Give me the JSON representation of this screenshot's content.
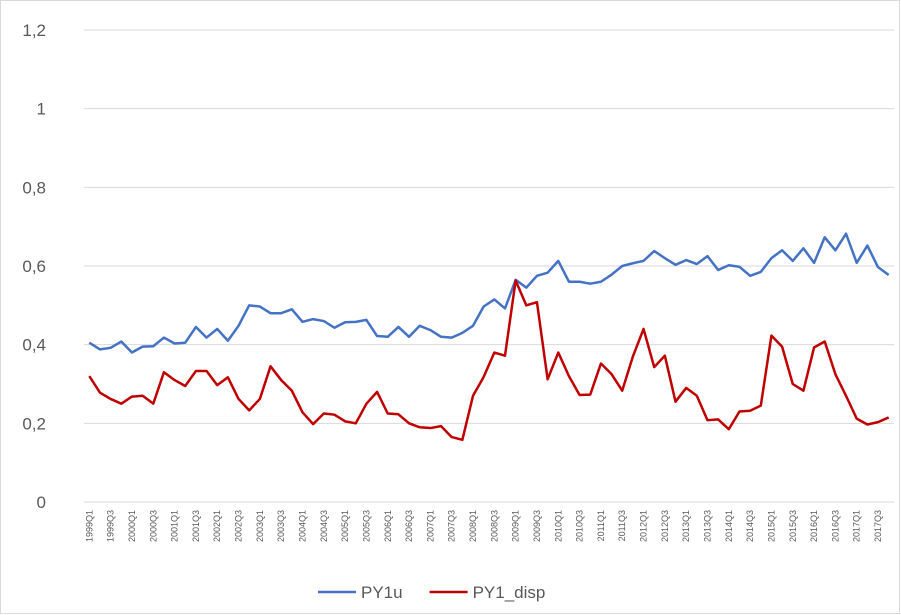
{
  "chart_data": {
    "type": "line",
    "categories": [
      "1999Q1",
      null,
      "1999Q3",
      null,
      "2000Q1",
      null,
      "2000Q3",
      null,
      "2001Q1",
      null,
      "2001Q3",
      null,
      "2002Q1",
      null,
      "2002Q3",
      null,
      "2003Q1",
      null,
      "2003Q3",
      null,
      "2004Q1",
      null,
      "2004Q3",
      null,
      "2005Q1",
      null,
      "2005Q3",
      null,
      "2006Q1",
      null,
      "2006Q3",
      null,
      "2007Q1",
      null,
      "2007Q3",
      null,
      "2008Q1",
      null,
      "2008Q3",
      null,
      "2009Q1",
      null,
      "2009Q3",
      null,
      "2010Q1",
      null,
      "2010Q3",
      null,
      "2011Q1",
      null,
      "2011Q3",
      null,
      "2012Q1",
      null,
      "2012Q3",
      null,
      "2013Q1",
      null,
      "2013Q3",
      null,
      "2014Q1",
      null,
      "2014Q3",
      null,
      "2015Q1",
      null,
      "2015Q3",
      null,
      "2016Q1",
      null,
      "2016Q3",
      null,
      "2017Q1",
      null,
      "2017Q3",
      null
    ],
    "series": [
      {
        "name": "PY1u",
        "color": "#4472c4",
        "values": [
          0.405,
          0.388,
          0.392,
          0.408,
          0.38,
          0.395,
          0.396,
          0.418,
          0.403,
          0.405,
          0.445,
          0.418,
          0.44,
          0.41,
          0.448,
          0.5,
          0.497,
          0.48,
          0.48,
          0.49,
          0.458,
          0.465,
          0.46,
          0.443,
          0.457,
          0.458,
          0.463,
          0.422,
          0.42,
          0.445,
          0.42,
          0.448,
          0.437,
          0.42,
          0.418,
          0.43,
          0.448,
          0.497,
          0.515,
          0.492,
          0.565,
          0.545,
          0.575,
          0.583,
          0.613,
          0.56,
          0.56,
          0.555,
          0.56,
          0.578,
          0.6,
          0.607,
          0.613,
          0.638,
          0.62,
          0.603,
          0.615,
          0.605,
          0.625,
          0.59,
          0.602,
          0.598,
          0.575,
          0.585,
          0.62,
          0.64,
          0.613,
          0.645,
          0.608,
          0.673,
          0.64,
          0.682,
          0.608,
          0.652,
          0.597,
          0.577
        ]
      },
      {
        "name": "PY1_disp",
        "color": "#c00000",
        "values": [
          0.32,
          0.278,
          0.262,
          0.25,
          0.268,
          0.27,
          0.25,
          0.33,
          0.31,
          0.295,
          0.333,
          0.333,
          0.297,
          0.317,
          0.262,
          0.233,
          0.262,
          0.345,
          0.31,
          0.283,
          0.228,
          0.198,
          0.225,
          0.222,
          0.205,
          0.2,
          0.25,
          0.28,
          0.225,
          0.223,
          0.2,
          0.19,
          0.188,
          0.193,
          0.165,
          0.158,
          0.27,
          0.318,
          0.38,
          0.372,
          0.563,
          0.5,
          0.508,
          0.312,
          0.38,
          0.32,
          0.272,
          0.273,
          0.352,
          0.325,
          0.283,
          0.37,
          0.44,
          0.343,
          0.372,
          0.255,
          0.29,
          0.27,
          0.208,
          0.21,
          0.185,
          0.23,
          0.232,
          0.245,
          0.423,
          0.395,
          0.3,
          0.283,
          0.393,
          0.408,
          0.325,
          0.27,
          0.212,
          0.197,
          0.203,
          0.215
        ]
      }
    ],
    "ylim": [
      0,
      1.2
    ],
    "yticks": [
      0,
      {
        "value": 0.2,
        "label": "0,2"
      },
      {
        "value": 0.4,
        "label": "0,4"
      },
      {
        "value": 0.6,
        "label": "0,6"
      },
      {
        "value": 0.8,
        "label": "0,8"
      },
      1,
      {
        "value": 1.2,
        "label": "1,2"
      }
    ],
    "grid": true,
    "legend": "bottom"
  }
}
